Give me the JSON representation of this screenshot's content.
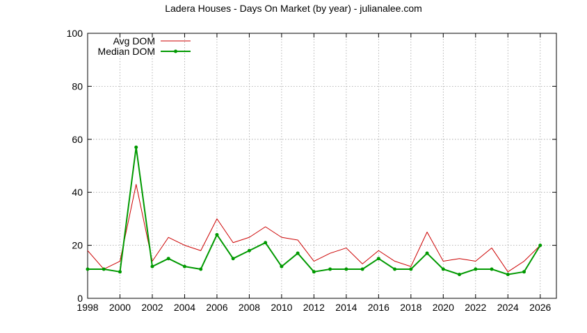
{
  "chart_data": {
    "type": "line",
    "title": "Ladera Houses - Days On Market (by year) - julianalee.com",
    "xlabel": "",
    "ylabel": "",
    "xlim": [
      1998,
      2027
    ],
    "ylim": [
      0,
      100
    ],
    "x_ticks": [
      1998,
      2000,
      2002,
      2004,
      2006,
      2008,
      2010,
      2012,
      2014,
      2016,
      2018,
      2020,
      2022,
      2024,
      2026
    ],
    "y_ticks": [
      0,
      20,
      40,
      60,
      80,
      100
    ],
    "grid": true,
    "legend_position": "top-left",
    "x": [
      1998,
      1999,
      2000,
      2001,
      2002,
      2003,
      2004,
      2005,
      2006,
      2007,
      2008,
      2009,
      2010,
      2011,
      2012,
      2013,
      2014,
      2015,
      2016,
      2017,
      2018,
      2019,
      2020,
      2021,
      2022,
      2023,
      2024,
      2025,
      2026
    ],
    "series": [
      {
        "name": "Avg DOM",
        "color": "#cc0000",
        "values": [
          18,
          11,
          14,
          43,
          14,
          23,
          20,
          18,
          30,
          21,
          23,
          27,
          23,
          22,
          14,
          17,
          19,
          13,
          18,
          14,
          12,
          25,
          14,
          15,
          14,
          19,
          10,
          14,
          20
        ]
      },
      {
        "name": "Median DOM",
        "color": "#009900",
        "values": [
          11,
          11,
          10,
          57,
          12,
          15,
          12,
          11,
          24,
          15,
          18,
          21,
          12,
          17,
          10,
          11,
          11,
          11,
          15,
          11,
          11,
          17,
          11,
          9,
          11,
          11,
          9,
          10,
          20
        ]
      }
    ]
  }
}
